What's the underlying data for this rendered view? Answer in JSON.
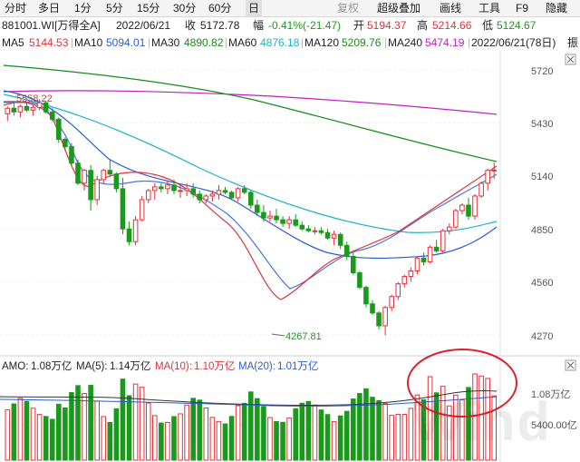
{
  "toolbar": {
    "items": [
      "分时",
      "多日",
      "1分",
      "5分",
      "15分",
      "30分",
      "60分",
      "日"
    ],
    "active_item": "日",
    "right_items": [
      "复权",
      "超级叠加",
      "画线",
      "工具",
      "F9",
      "隐藏"
    ]
  },
  "info": {
    "code": "881001.WI[万得全A]",
    "date": "2022/06/21",
    "close_label": "收",
    "close_value": "5172.78",
    "change_label": "幅",
    "change_value": "-0.41%(-21.47)",
    "open_label": "开",
    "open_value": "5194.37",
    "high_label": "高",
    "high_value": "5214.66",
    "low_label": "低",
    "low_value": "5124.67"
  },
  "ma_line": {
    "items": [
      {
        "label": "MA5",
        "value": "5144.53",
        "color": "#e0323a"
      },
      {
        "label": "MA10",
        "value": "5094.01",
        "color": "#2a5bd7"
      },
      {
        "label": "MA30",
        "value": "4890.82",
        "color": "#1a8a1a"
      },
      {
        "label": "MA60",
        "value": "4876.18",
        "color": "#1fb4c8"
      },
      {
        "label": "MA120",
        "value": "5209.76",
        "color": "#1a8a1a"
      },
      {
        "label": "MA240",
        "value": "5474.19",
        "color": "#c020c0"
      }
    ],
    "trailing_date": "2022/06/21(78日)",
    "trailing_extra": "振"
  },
  "price_panel": {
    "y_ticks": [
      "5720",
      "5430",
      "5140",
      "4850",
      "4560",
      "4270"
    ],
    "high_annotation": "5558.22",
    "low_annotation": "4267.81"
  },
  "volume_panel": {
    "amo_label": "AMO:",
    "amo_value": "1.08万亿",
    "ma5_label": "MA(5):",
    "ma5_value": "1.14万亿",
    "ma10_label": "MA(10):",
    "ma10_value": "1.10万亿",
    "ma20_label": "MA(20):",
    "ma20_value": "1.01万亿",
    "y_ticks": [
      "1.08万亿",
      "5400.00亿"
    ]
  },
  "colors": {
    "up": "#e0323a",
    "down": "#1a9a1a",
    "ma5": "#e0323a",
    "ma10": "#2a5bd7",
    "ma30": "#1a8a1a",
    "ma60": "#1fb4c8",
    "ma120": "#1a8a1a",
    "ma240": "#c020c0",
    "highlight_circle": "#d9232d"
  },
  "chart_data": {
    "type": "candlestick",
    "dates_visible": [
      "2022/06/21"
    ],
    "price_axis": {
      "ylim": [
        4200,
        5800
      ],
      "ticks": [
        5720,
        5430,
        5140,
        4850,
        4560,
        4270
      ]
    },
    "candles": [
      [
        5480,
        5520,
        5440,
        5510
      ],
      [
        5510,
        5540,
        5470,
        5490
      ],
      [
        5490,
        5530,
        5460,
        5520
      ],
      [
        5520,
        5545,
        5490,
        5500
      ],
      [
        5500,
        5530,
        5470,
        5515
      ],
      [
        5515,
        5558,
        5500,
        5540
      ],
      [
        5540,
        5550,
        5480,
        5490
      ],
      [
        5490,
        5510,
        5440,
        5450
      ],
      [
        5450,
        5460,
        5320,
        5340
      ],
      [
        5340,
        5350,
        5280,
        5300
      ],
      [
        5300,
        5320,
        5200,
        5210
      ],
      [
        5210,
        5230,
        5090,
        5100
      ],
      [
        5100,
        5180,
        5060,
        5170
      ],
      [
        5170,
        5200,
        4950,
        5010
      ],
      [
        5010,
        5140,
        4980,
        5120
      ],
      [
        5120,
        5180,
        5100,
        5170
      ],
      [
        5170,
        5230,
        5140,
        5150
      ],
      [
        5150,
        5160,
        5050,
        5070
      ],
      [
        5070,
        5130,
        4820,
        4850
      ],
      [
        4850,
        4890,
        4760,
        4780
      ],
      [
        4780,
        4920,
        4760,
        4900
      ],
      [
        4900,
        5030,
        4890,
        5010
      ],
      [
        5010,
        5070,
        4990,
        5060
      ],
      [
        5060,
        5100,
        5010,
        5080
      ],
      [
        5080,
        5100,
        5050,
        5070
      ],
      [
        5070,
        5110,
        5040,
        5090
      ],
      [
        5090,
        5120,
        5040,
        5060
      ],
      [
        5060,
        5090,
        5020,
        5060
      ],
      [
        5060,
        5100,
        5030,
        5070
      ],
      [
        5070,
        5100,
        5020,
        5040
      ],
      [
        5040,
        5060,
        4990,
        5010
      ],
      [
        5010,
        5040,
        4990,
        5030
      ],
      [
        5030,
        5060,
        5000,
        5040
      ],
      [
        5040,
        5090,
        5010,
        5060
      ],
      [
        5060,
        5080,
        5040,
        5050
      ],
      [
        5050,
        5060,
        5010,
        5020
      ],
      [
        5020,
        5080,
        5000,
        5070
      ],
      [
        5070,
        5090,
        5040,
        5050
      ],
      [
        5050,
        5060,
        4960,
        4980
      ],
      [
        4980,
        5010,
        4920,
        4940
      ],
      [
        4940,
        4980,
        4890,
        4910
      ],
      [
        4910,
        4950,
        4890,
        4920
      ],
      [
        4920,
        4960,
        4880,
        4900
      ],
      [
        4900,
        4920,
        4860,
        4880
      ],
      [
        4880,
        4920,
        4850,
        4900
      ],
      [
        4900,
        4930,
        4860,
        4870
      ],
      [
        4870,
        4890,
        4840,
        4850
      ],
      [
        4850,
        4870,
        4830,
        4840
      ],
      [
        4840,
        4860,
        4820,
        4840
      ],
      [
        4840,
        4860,
        4820,
        4830
      ],
      [
        4830,
        4850,
        4790,
        4800
      ],
      [
        4800,
        4840,
        4760,
        4820
      ],
      [
        4820,
        4830,
        4740,
        4760
      ],
      [
        4760,
        4780,
        4680,
        4700
      ],
      [
        4700,
        4720,
        4600,
        4610
      ],
      [
        4610,
        4620,
        4520,
        4530
      ],
      [
        4530,
        4540,
        4420,
        4440
      ],
      [
        4440,
        4460,
        4380,
        4390
      ],
      [
        4390,
        4400,
        4300,
        4320
      ],
      [
        4320,
        4430,
        4267,
        4420
      ],
      [
        4420,
        4490,
        4400,
        4480
      ],
      [
        4480,
        4560,
        4460,
        4550
      ],
      [
        4550,
        4600,
        4530,
        4590
      ]
    ]
  }
}
